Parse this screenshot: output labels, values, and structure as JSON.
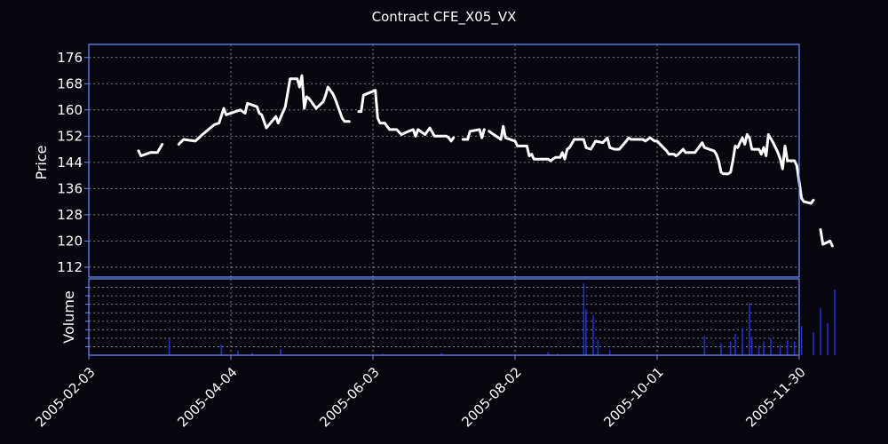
{
  "colors": {
    "background": "#07050d",
    "frame": "#6d8fff",
    "price_line": "#ffffff",
    "volume_bar": "#2030c8"
  },
  "chart_data": {
    "type": "line",
    "title": "Contract CFE_X05_VX",
    "x_range": [
      "2005-02-03",
      "2005-11-30"
    ],
    "x_ticks": [
      "2005-02-03",
      "2005-04-04",
      "2005-06-03",
      "2005-08-02",
      "2005-10-01",
      "2005-11-30"
    ],
    "grid": true,
    "panels": [
      {
        "name": "price",
        "ylabel": "Price",
        "ylim": [
          109,
          180
        ],
        "y_ticks": [
          112,
          120,
          128,
          136,
          144,
          152,
          160,
          168,
          176
        ],
        "segments": [
          [
            [
              "2005-02-24",
              147.5
            ],
            [
              "2005-02-25",
              146
            ],
            [
              "2005-03-01",
              147
            ],
            [
              "2005-03-04",
              147
            ],
            [
              "2005-03-06",
              149.5
            ]
          ],
          [
            [
              "2005-03-13",
              149.5
            ],
            [
              "2005-03-15",
              151
            ],
            [
              "2005-03-20",
              150.5
            ],
            [
              "2005-03-23",
              152.5
            ],
            [
              "2005-03-28",
              155.5
            ],
            [
              "2005-03-30",
              156
            ],
            [
              "2005-04-01",
              160.5
            ],
            [
              "2005-04-02",
              158.5
            ],
            [
              "2005-04-08",
              160
            ],
            [
              "2005-04-10",
              159
            ],
            [
              "2005-04-11",
              162
            ],
            [
              "2005-04-15",
              161
            ],
            [
              "2005-04-16",
              159
            ],
            [
              "2005-04-17",
              158.5
            ],
            [
              "2005-04-19",
              154.5
            ],
            [
              "2005-04-23",
              158
            ],
            [
              "2005-04-24",
              156
            ],
            [
              "2005-04-27",
              161
            ],
            [
              "2005-04-29",
              169.5
            ],
            [
              "2005-05-02",
              169.5
            ],
            [
              "2005-05-03",
              167
            ],
            [
              "2005-05-04",
              170.5
            ],
            [
              "2005-05-05",
              160.5
            ],
            [
              "2005-05-06",
              164
            ],
            [
              "2005-05-07",
              163.5
            ],
            [
              "2005-05-10",
              160.5
            ],
            [
              "2005-05-13",
              162.5
            ],
            [
              "2005-05-14",
              164.5
            ],
            [
              "2005-05-15",
              167
            ],
            [
              "2005-05-17",
              165
            ],
            [
              "2005-05-18",
              163.5
            ],
            [
              "2005-05-21",
              157.5
            ],
            [
              "2005-05-22",
              156.5
            ],
            [
              "2005-05-24",
              156.5
            ]
          ],
          [
            [
              "2005-05-28",
              159.5
            ],
            [
              "2005-05-29",
              159.5
            ],
            [
              "2005-05-30",
              164.5
            ],
            [
              "2005-06-04",
              166
            ],
            [
              "2005-06-05",
              157.5
            ],
            [
              "2005-06-06",
              156
            ],
            [
              "2005-06-08",
              156
            ],
            [
              "2005-06-10",
              154
            ],
            [
              "2005-06-13",
              154
            ],
            [
              "2005-06-15",
              152.5
            ],
            [
              "2005-06-18",
              153.5
            ],
            [
              "2005-06-20",
              154
            ],
            [
              "2005-06-21",
              152
            ],
            [
              "2005-06-22",
              154
            ],
            [
              "2005-06-25",
              152.5
            ],
            [
              "2005-06-27",
              154.5
            ],
            [
              "2005-06-29",
              152
            ],
            [
              "2005-07-04",
              152
            ],
            [
              "2005-07-05",
              151.5
            ],
            [
              "2005-07-06",
              150.5
            ],
            [
              "2005-07-07",
              151.5
            ]
          ],
          [
            [
              "2005-07-11",
              151
            ],
            [
              "2005-07-13",
              151
            ],
            [
              "2005-07-14",
              153.5
            ],
            [
              "2005-07-18",
              154
            ],
            [
              "2005-07-19",
              151.5
            ],
            [
              "2005-07-20",
              154
            ]
          ],
          [
            [
              "2005-07-22",
              153.5
            ],
            [
              "2005-07-23",
              153
            ],
            [
              "2005-07-27",
              151
            ],
            [
              "2005-07-28",
              155
            ],
            [
              "2005-07-29",
              151.5
            ],
            [
              "2005-08-02",
              150.5
            ],
            [
              "2005-08-03",
              149
            ],
            [
              "2005-08-07",
              149
            ],
            [
              "2005-08-08",
              146
            ],
            [
              "2005-08-09",
              146.5
            ],
            [
              "2005-08-10",
              145
            ],
            [
              "2005-08-16",
              145
            ],
            [
              "2005-08-17",
              144.5
            ],
            [
              "2005-08-19",
              145.5
            ],
            [
              "2005-08-21",
              145.5
            ],
            [
              "2005-08-22",
              147
            ],
            [
              "2005-08-23",
              145
            ],
            [
              "2005-08-24",
              148
            ],
            [
              "2005-08-25",
              148.5
            ],
            [
              "2005-08-27",
              151
            ],
            [
              "2005-08-31",
              151
            ],
            [
              "2005-09-01",
              148.5
            ],
            [
              "2005-09-03",
              148
            ],
            [
              "2005-09-05",
              150.5
            ],
            [
              "2005-09-08",
              150
            ],
            [
              "2005-09-10",
              151.5
            ],
            [
              "2005-09-11",
              148.5
            ],
            [
              "2005-09-13",
              148
            ],
            [
              "2005-09-15",
              148
            ],
            [
              "2005-09-18",
              150.5
            ],
            [
              "2005-09-19",
              151.5
            ],
            [
              "2005-09-20",
              151
            ],
            [
              "2005-09-22",
              151
            ],
            [
              "2005-09-25",
              151
            ],
            [
              "2005-09-26",
              150.5
            ],
            [
              "2005-09-28",
              151.5
            ],
            [
              "2005-09-30",
              150.5
            ],
            [
              "2005-10-01",
              150.5
            ],
            [
              "2005-10-03",
              149
            ],
            [
              "2005-10-05",
              147.5
            ],
            [
              "2005-10-06",
              146.5
            ],
            [
              "2005-10-08",
              146.5
            ],
            [
              "2005-10-09",
              146
            ],
            [
              "2005-10-10",
              146.5
            ],
            [
              "2005-10-12",
              148
            ],
            [
              "2005-10-13",
              147
            ],
            [
              "2005-10-14",
              147
            ],
            [
              "2005-10-16",
              147
            ],
            [
              "2005-10-17",
              147
            ],
            [
              "2005-10-19",
              149
            ],
            [
              "2005-10-20",
              150
            ],
            [
              "2005-10-21",
              148.5
            ],
            [
              "2005-10-23",
              148
            ],
            [
              "2005-10-25",
              147.5
            ],
            [
              "2005-10-26",
              146.5
            ],
            [
              "2005-10-27",
              144.5
            ],
            [
              "2005-10-28",
              141
            ],
            [
              "2005-10-29",
              140.5
            ],
            [
              "2005-10-31",
              140.5
            ],
            [
              "2005-11-01",
              141
            ],
            [
              "2005-11-02",
              144.5
            ],
            [
              "2005-11-03",
              149
            ],
            [
              "2005-11-04",
              148.5
            ],
            [
              "2005-11-05",
              150
            ],
            [
              "2005-11-06",
              151.5
            ],
            [
              "2005-11-07",
              149.5
            ],
            [
              "2005-11-08",
              152.5
            ],
            [
              "2005-11-09",
              151.5
            ],
            [
              "2005-11-10",
              148
            ],
            [
              "2005-11-13",
              148
            ],
            [
              "2005-11-14",
              146.5
            ],
            [
              "2005-11-15",
              148.5
            ],
            [
              "2005-11-16",
              146
            ],
            [
              "2005-11-17",
              152.5
            ],
            [
              "2005-11-19",
              150
            ],
            [
              "2005-11-21",
              147
            ],
            [
              "2005-11-22",
              145
            ],
            [
              "2005-11-23",
              142
            ],
            [
              "2005-11-24",
              149
            ],
            [
              "2005-11-25",
              144.5
            ],
            [
              "2005-11-28",
              144.5
            ],
            [
              "2005-11-29",
              143
            ],
            [
              "2005-11-30",
              138
            ],
            [
              "2005-12-01",
              133
            ],
            [
              "2005-12-02",
              132
            ],
            [
              "2005-12-05",
              131.5
            ],
            [
              "2005-12-06",
              132.5
            ]
          ],
          [
            [
              "2005-12-09",
              123.5
            ],
            [
              "2005-12-10",
              119
            ],
            [
              "2005-12-13",
              120
            ],
            [
              "2005-12-14",
              118.5
            ]
          ]
        ]
      },
      {
        "name": "volume",
        "ylabel": "Volume",
        "ylim": [
          0,
          100
        ],
        "bars": [
          [
            "2005-03-09",
            22
          ],
          [
            "2005-03-31",
            14
          ],
          [
            "2005-04-07",
            6
          ],
          [
            "2005-04-13",
            3
          ],
          [
            "2005-04-25",
            8
          ],
          [
            "2005-06-07",
            2
          ],
          [
            "2005-07-02",
            3
          ],
          [
            "2005-08-16",
            4
          ],
          [
            "2005-08-20",
            2
          ],
          [
            "2005-08-31",
            94
          ],
          [
            "2005-09-01",
            60
          ],
          [
            "2005-09-04",
            52
          ],
          [
            "2005-09-06",
            20
          ],
          [
            "2005-09-11",
            7
          ],
          [
            "2005-10-21",
            25
          ],
          [
            "2005-10-28",
            16
          ],
          [
            "2005-11-01",
            18
          ],
          [
            "2005-11-03",
            28
          ],
          [
            "2005-11-06",
            36
          ],
          [
            "2005-11-09",
            68
          ],
          [
            "2005-11-10",
            24
          ],
          [
            "2005-11-13",
            12
          ],
          [
            "2005-11-15",
            18
          ],
          [
            "2005-11-18",
            22
          ],
          [
            "2005-11-22",
            14
          ],
          [
            "2005-11-25",
            20
          ],
          [
            "2005-11-28",
            18
          ],
          [
            "2005-12-01",
            38
          ],
          [
            "2005-12-06",
            30
          ],
          [
            "2005-12-09",
            62
          ],
          [
            "2005-12-12",
            42
          ],
          [
            "2005-12-15",
            86
          ]
        ]
      }
    ]
  }
}
